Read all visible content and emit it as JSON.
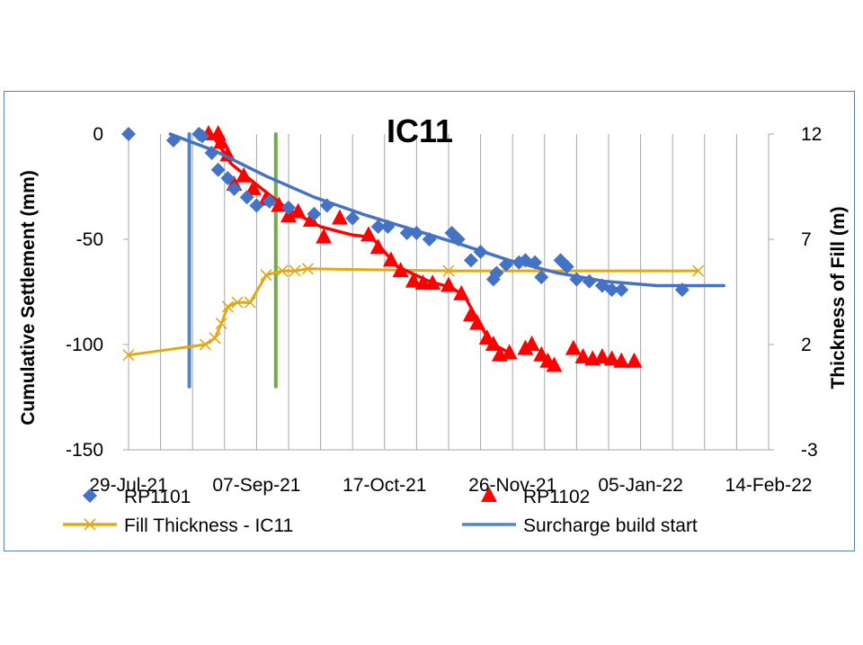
{
  "chart_data": {
    "type": "scatter",
    "title": "IC11",
    "ylabel": "Cumulative Settlement (mm)",
    "y2label": "Thickness of Fill (m)",
    "xlabel": "",
    "x_ticks": [
      "29-Jul-21",
      "07-Sep-21",
      "17-Oct-21",
      "26-Nov-21",
      "05-Jan-22",
      "14-Feb-22"
    ],
    "y_ticks": [
      "0",
      "-50",
      "-100",
      "-150"
    ],
    "y2_ticks": [
      "12",
      "7",
      "2",
      "-3"
    ],
    "xlim": [
      "2021-07-29",
      "2022-02-14"
    ],
    "ylim": [
      -150,
      0
    ],
    "y2lim": [
      -3,
      12
    ],
    "grid": "vertical",
    "legend_position": "bottom",
    "series": [
      {
        "name": "RP1101",
        "axis": "left",
        "marker": "diamond",
        "color": "#4472c4",
        "points": [
          [
            "2021-07-29",
            0
          ],
          [
            "2021-08-12",
            -3
          ],
          [
            "2021-08-20",
            0
          ],
          [
            "2021-08-21",
            -1
          ],
          [
            "2021-08-24",
            -9
          ],
          [
            "2021-08-26",
            -17
          ],
          [
            "2021-08-29",
            -21
          ],
          [
            "2021-08-31",
            -26
          ],
          [
            "2021-09-04",
            -30
          ],
          [
            "2021-09-07",
            -34
          ],
          [
            "2021-09-11",
            -32
          ],
          [
            "2021-09-17",
            -35
          ],
          [
            "2021-09-25",
            -38
          ],
          [
            "2021-09-29",
            -34
          ],
          [
            "2021-10-07",
            -40
          ],
          [
            "2021-10-15",
            -44
          ],
          [
            "2021-10-18",
            -44
          ],
          [
            "2021-10-24",
            -47
          ],
          [
            "2021-10-27",
            -47
          ],
          [
            "2021-10-31",
            -50
          ],
          [
            "2021-11-07",
            -47
          ],
          [
            "2021-11-09",
            -50
          ],
          [
            "2021-11-13",
            -60
          ],
          [
            "2021-11-16",
            -56
          ],
          [
            "2021-11-20",
            -69
          ],
          [
            "2021-11-21",
            -66
          ],
          [
            "2021-11-24",
            -62
          ],
          [
            "2021-11-28",
            -61
          ],
          [
            "2021-11-30",
            -60
          ],
          [
            "2021-12-03",
            -61
          ],
          [
            "2021-12-05",
            -68
          ],
          [
            "2021-12-11",
            -60
          ],
          [
            "2021-12-13",
            -63
          ],
          [
            "2021-12-16",
            -69
          ],
          [
            "2021-12-20",
            -70
          ],
          [
            "2021-12-24",
            -72
          ],
          [
            "2021-12-27",
            -74
          ],
          [
            "2021-12-30",
            -74
          ],
          [
            "2022-01-18",
            -74
          ]
        ],
        "trend": [
          [
            "2021-08-11",
            0
          ],
          [
            "2021-08-25",
            -8
          ],
          [
            "2021-09-10",
            -20
          ],
          [
            "2021-09-25",
            -30
          ],
          [
            "2021-10-10",
            -38
          ],
          [
            "2021-10-25",
            -45
          ],
          [
            "2021-11-09",
            -52
          ],
          [
            "2021-11-25",
            -60
          ],
          [
            "2021-12-10",
            -66
          ],
          [
            "2021-12-25",
            -70
          ],
          [
            "2022-01-10",
            -72
          ],
          [
            "2022-01-31",
            -72
          ]
        ]
      },
      {
        "name": "RP1102",
        "axis": "left",
        "marker": "triangle",
        "color": "#ff0000",
        "points": [
          [
            "2021-08-23",
            0
          ],
          [
            "2021-08-26",
            0
          ],
          [
            "2021-08-27",
            -4
          ],
          [
            "2021-08-29",
            -10
          ],
          [
            "2021-08-31",
            -24
          ],
          [
            "2021-09-03",
            -20
          ],
          [
            "2021-09-06",
            -26
          ],
          [
            "2021-09-10",
            -31
          ],
          [
            "2021-09-14",
            -34
          ],
          [
            "2021-09-17",
            -39
          ],
          [
            "2021-09-20",
            -37
          ],
          [
            "2021-09-24",
            -41
          ],
          [
            "2021-09-28",
            -49
          ],
          [
            "2021-10-03",
            -40
          ],
          [
            "2021-10-12",
            -48
          ],
          [
            "2021-10-15",
            -54
          ],
          [
            "2021-10-19",
            -60
          ],
          [
            "2021-10-22",
            -65
          ],
          [
            "2021-10-26",
            -70
          ],
          [
            "2021-10-29",
            -71
          ],
          [
            "2021-11-01",
            -71
          ],
          [
            "2021-11-06",
            -72
          ],
          [
            "2021-11-10",
            -76
          ],
          [
            "2021-11-13",
            -86
          ],
          [
            "2021-11-15",
            -90
          ],
          [
            "2021-11-18",
            -97
          ],
          [
            "2021-11-20",
            -100
          ],
          [
            "2021-11-22",
            -105
          ],
          [
            "2021-11-25",
            -104
          ],
          [
            "2021-11-30",
            -102
          ],
          [
            "2021-12-02",
            -100
          ],
          [
            "2021-12-05",
            -105
          ],
          [
            "2021-12-07",
            -108
          ],
          [
            "2021-12-09",
            -110
          ],
          [
            "2021-12-15",
            -102
          ],
          [
            "2021-12-18",
            -106
          ],
          [
            "2021-12-21",
            -107
          ],
          [
            "2021-12-24",
            -106
          ],
          [
            "2021-12-27",
            -107
          ],
          [
            "2021-12-30",
            -108
          ],
          [
            "2022-01-03",
            -108
          ]
        ],
        "trend": [
          [
            "2021-08-24",
            0
          ],
          [
            "2021-08-30",
            -14
          ],
          [
            "2021-09-07",
            -24
          ],
          [
            "2021-09-17",
            -36
          ],
          [
            "2021-09-27",
            -44
          ],
          [
            "2021-10-07",
            -48
          ],
          [
            "2021-10-13",
            -49
          ],
          [
            "2021-10-21",
            -63
          ],
          [
            "2021-10-31",
            -70
          ],
          [
            "2021-11-07",
            -73
          ],
          [
            "2021-11-11",
            -77
          ],
          [
            "2021-11-19",
            -99
          ],
          [
            "2021-11-25",
            -104
          ]
        ]
      },
      {
        "name": "Fill Thickness - IC11",
        "axis": "right",
        "marker": "x",
        "color": "#e0a915",
        "points": [
          [
            "2021-07-29",
            1.5
          ],
          [
            "2021-08-22",
            2.0
          ],
          [
            "2021-08-25",
            2.3
          ],
          [
            "2021-08-27",
            3.0
          ],
          [
            "2021-08-29",
            3.8
          ],
          [
            "2021-09-01",
            4.0
          ],
          [
            "2021-09-05",
            4.0
          ],
          [
            "2021-09-10",
            5.3
          ],
          [
            "2021-09-15",
            5.5
          ],
          [
            "2021-09-19",
            5.5
          ],
          [
            "2021-09-23",
            5.6
          ],
          [
            "2021-11-06",
            5.5
          ],
          [
            "2022-01-23",
            5.5
          ]
        ]
      },
      {
        "name": "Surcharge build start",
        "axis": "left",
        "marker": "none",
        "color": "#4f86c6",
        "points": [
          [
            "2021-08-17",
            0
          ],
          [
            "2021-08-17",
            -120
          ]
        ]
      },
      {
        "name": "",
        "axis": "left",
        "marker": "none",
        "color": "#70ad47",
        "points": [
          [
            "2021-09-13",
            0
          ],
          [
            "2021-09-13",
            -120
          ]
        ]
      }
    ],
    "legend": [
      "RP1101",
      "RP1102",
      "Fill Thickness - IC11",
      "Surcharge build start"
    ]
  }
}
